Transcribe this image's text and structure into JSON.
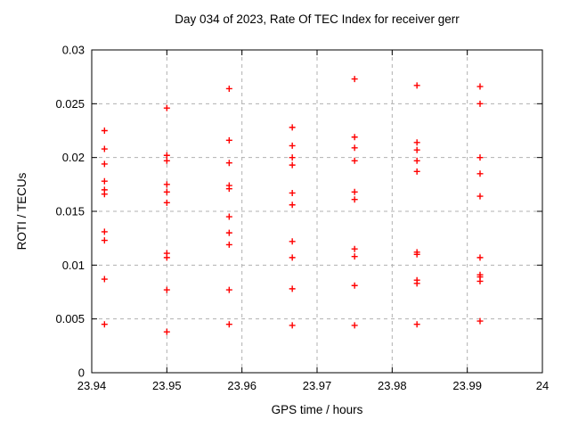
{
  "chart_data": {
    "type": "scatter",
    "title": "Day 034 of 2023, Rate Of TEC Index for receiver gerr",
    "xlabel": "GPS time / hours",
    "ylabel": "ROTI / TECUs",
    "xlim": [
      23.94,
      24
    ],
    "ylim": [
      0,
      0.03
    ],
    "xticks": {
      "values": [
        23.94,
        23.95,
        23.96,
        23.97,
        23.98,
        23.99,
        24
      ],
      "labels": [
        "23.94",
        "23.95",
        "23.96",
        "23.97",
        "23.98",
        "23.99",
        "24"
      ]
    },
    "yticks": {
      "values": [
        0,
        0.005,
        0.01,
        0.015,
        0.02,
        0.025,
        0.03
      ],
      "labels": [
        "0",
        "0.005",
        "0.01",
        "0.015",
        "0.02",
        "0.025",
        "0.03"
      ]
    },
    "grid": true,
    "legend_position": "none",
    "marker": {
      "shape": "plus",
      "color": "#ff0000",
      "size": 7
    },
    "colors": {
      "axis": "#000000",
      "grid": "#b0b0b0",
      "marker": "#ff0000",
      "background": "#ffffff"
    },
    "series": [
      {
        "name": "ROTI",
        "clusters": [
          {
            "x": 23.9417,
            "y": [
              0.0225,
              0.0208,
              0.0194,
              0.0178,
              0.017,
              0.0166,
              0.0131,
              0.0123,
              0.0087,
              0.0045
            ]
          },
          {
            "x": 23.95,
            "y": [
              0.0246,
              0.0202,
              0.0197,
              0.0175,
              0.0168,
              0.0158,
              0.0111,
              0.0107,
              0.0077,
              0.0038
            ]
          },
          {
            "x": 23.9583,
            "y": [
              0.0264,
              0.0216,
              0.0195,
              0.0174,
              0.0171,
              0.0145,
              0.013,
              0.0119,
              0.0077,
              0.0045
            ]
          },
          {
            "x": 23.9667,
            "y": [
              0.0228,
              0.0211,
              0.02,
              0.0193,
              0.0167,
              0.0156,
              0.0122,
              0.0107,
              0.0078,
              0.0044
            ]
          },
          {
            "x": 23.975,
            "y": [
              0.0273,
              0.0219,
              0.0209,
              0.0197,
              0.0168,
              0.0161,
              0.0115,
              0.0108,
              0.0081,
              0.0044
            ]
          },
          {
            "x": 23.9833,
            "y": [
              0.0267,
              0.0214,
              0.0207,
              0.0197,
              0.0187,
              0.0112,
              0.011,
              0.0086,
              0.0083,
              0.0045
            ]
          },
          {
            "x": 23.9917,
            "y": [
              0.0266,
              0.025,
              0.02,
              0.0185,
              0.0164,
              0.0107,
              0.0091,
              0.0089,
              0.0085,
              0.0048
            ]
          }
        ]
      }
    ]
  }
}
